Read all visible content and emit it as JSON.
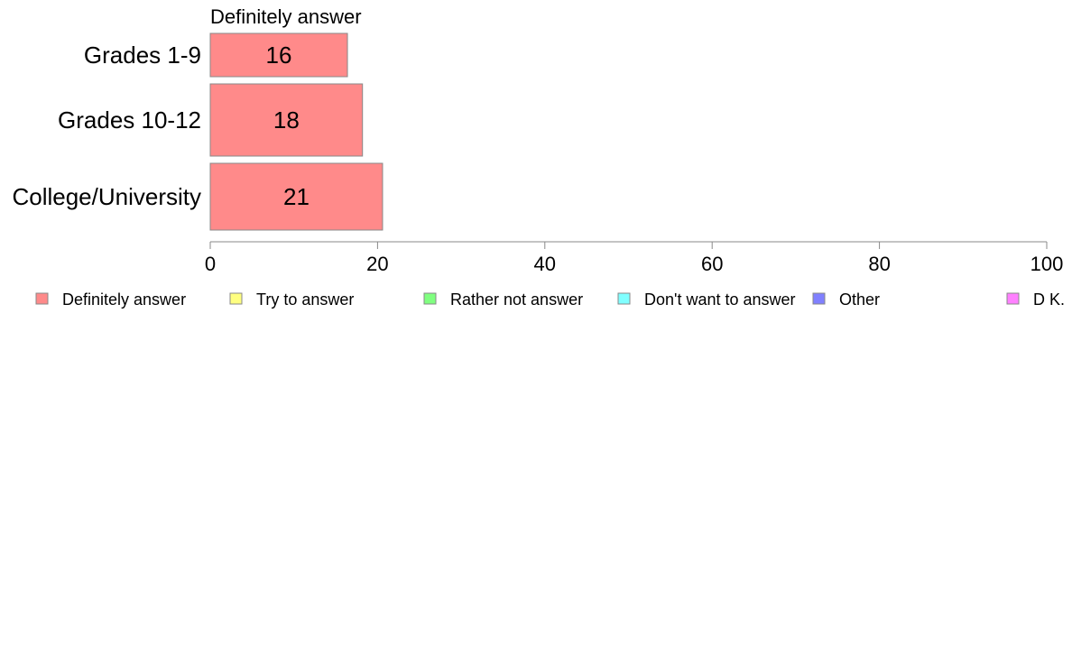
{
  "chart_data": {
    "type": "bar",
    "orientation": "horizontal",
    "stacked": true,
    "title": "Definitely answer",
    "categories": [
      "Grades 1-9",
      "Grades 10-12",
      "College/University"
    ],
    "series": [
      {
        "name": "Definitely answer",
        "color": "#ff8a8a",
        "values": [
          16.4,
          18.2,
          20.6
        ],
        "labels": [
          "16",
          "18",
          "21"
        ]
      },
      {
        "name": "Try to answer",
        "color": "#ffff80",
        "values": [
          0,
          0,
          0
        ]
      },
      {
        "name": "Rather not answer",
        "color": "#80ff80",
        "values": [
          0,
          0,
          0
        ]
      },
      {
        "name": "Don't want to answer",
        "color": "#80ffff",
        "values": [
          0,
          0,
          0
        ]
      },
      {
        "name": "Other",
        "color": "#8080ff",
        "values": [
          0,
          0,
          0
        ]
      },
      {
        "name": "D K.",
        "color": "#ff80ff",
        "values": [
          0,
          0,
          0
        ]
      }
    ],
    "xlim": [
      0,
      100
    ],
    "xticks": [
      "0",
      "20",
      "40",
      "60",
      "80",
      "100"
    ],
    "xlabel": "",
    "ylabel": "",
    "grid": false,
    "legend_position": "bottom"
  }
}
